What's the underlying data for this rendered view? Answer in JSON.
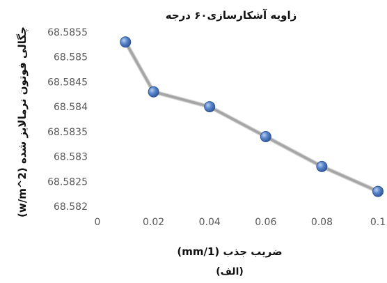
{
  "chart_data": {
    "type": "line",
    "title": "زاویه آشکارسازی۶۰ درجه",
    "xlabel": "ضریب جذب (1/mm)",
    "ylabel": "چگالی فوتون نرمالایز شده (w/m^2)",
    "caption": "(الف)",
    "x": [
      0.01,
      0.02,
      0.04,
      0.06,
      0.08,
      0.1
    ],
    "series": [
      {
        "values": [
          68.5853,
          68.5843,
          68.584,
          68.5834,
          68.5828,
          68.5823
        ]
      }
    ],
    "xlim": [
      0,
      0.1
    ],
    "ylim": [
      68.582,
      68.5855
    ],
    "xticks": [
      "0",
      "0.02",
      "0.04",
      "0.06",
      "0.08",
      "0.1"
    ],
    "yticks": [
      "68.582",
      "68.5825",
      "68.583",
      "68.5835",
      "68.584",
      "68.5845",
      "68.585",
      "68.5855"
    ],
    "grid": false,
    "legend": "none",
    "colors": {
      "line": "#a5a5a5",
      "marker": "#4a78c2",
      "marker_edge": "#2f5597",
      "tick_text": "#595959"
    }
  }
}
